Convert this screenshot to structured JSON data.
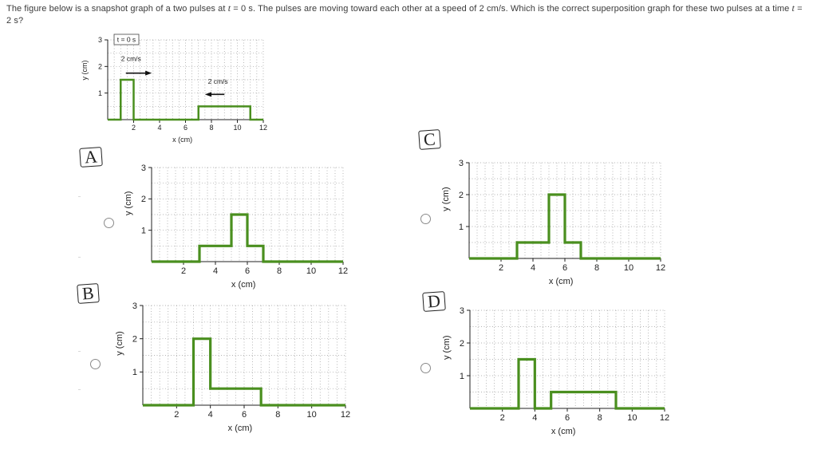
{
  "question": {
    "part1": "The figure below is a snapshot graph of a two pulses at ",
    "t_var1": "t",
    "part2": " = 0 s. The pulses are moving toward each other at a speed of 2 cm/s. Which is the correct superposition graph for these two pulses at a time ",
    "t_var2": "t",
    "part3": " = 2 s?"
  },
  "snapshot": {
    "time_label": "t = 0 s",
    "speed_left": "2 cm/s",
    "speed_right": "2 cm/s",
    "xlabel": "x (cm)",
    "ylabel": "y (cm)",
    "x_ticks": [
      "2",
      "4",
      "6",
      "8",
      "10",
      "12"
    ],
    "y_ticks": [
      "1",
      "2",
      "3"
    ]
  },
  "options": [
    {
      "letter": "A",
      "xlabel": "x (cm)",
      "ylabel": "y (cm)",
      "x_ticks": [
        "2",
        "4",
        "6",
        "8",
        "10",
        "12"
      ],
      "y_ticks": [
        "1",
        "2",
        "3"
      ]
    },
    {
      "letter": "B",
      "xlabel": "x (cm)",
      "ylabel": "y (cm)",
      "x_ticks": [
        "2",
        "4",
        "6",
        "8",
        "10",
        "12"
      ],
      "y_ticks": [
        "1",
        "2",
        "3"
      ]
    },
    {
      "letter": "C",
      "xlabel": "x (cm)",
      "ylabel": "y (cm)",
      "x_ticks": [
        "2",
        "4",
        "6",
        "8",
        "10",
        "12"
      ],
      "y_ticks": [
        "1",
        "2",
        "3"
      ]
    },
    {
      "letter": "D",
      "xlabel": "x (cm)",
      "ylabel": "y (cm)",
      "x_ticks": [
        "2",
        "4",
        "6",
        "8",
        "10",
        "12"
      ],
      "y_ticks": [
        "1",
        "2",
        "3"
      ]
    }
  ],
  "colors": {
    "pulse": "#4a8f1f",
    "grid": "#9a9a9a",
    "text": "#3a3a3a"
  },
  "chart_data": [
    {
      "id": "snapshot",
      "type": "line",
      "title": "t = 0 s",
      "xlabel": "x (cm)",
      "ylabel": "y (cm)",
      "xlim": [
        0,
        12
      ],
      "ylim": [
        0,
        3
      ],
      "grid": true,
      "x": [
        0,
        1,
        1,
        2,
        2,
        7,
        7,
        11,
        11,
        12
      ],
      "y": [
        0,
        0,
        1.5,
        1.5,
        0,
        0,
        0.5,
        0.5,
        0,
        0
      ]
    },
    {
      "id": "A",
      "type": "line",
      "xlabel": "x (cm)",
      "ylabel": "y (cm)",
      "xlim": [
        0,
        12
      ],
      "ylim": [
        0,
        3
      ],
      "grid": true,
      "x": [
        0,
        3,
        3,
        5,
        5,
        6,
        6,
        7,
        7,
        12
      ],
      "y": [
        0,
        0,
        0.5,
        0.5,
        1.5,
        1.5,
        0.5,
        0.5,
        0,
        0
      ]
    },
    {
      "id": "B",
      "type": "line",
      "xlabel": "x (cm)",
      "ylabel": "y (cm)",
      "xlim": [
        0,
        12
      ],
      "ylim": [
        0,
        3
      ],
      "grid": true,
      "x": [
        0,
        3,
        3,
        4,
        4,
        7,
        7,
        12
      ],
      "y": [
        0,
        0,
        2,
        2,
        0.5,
        0.5,
        0,
        0
      ]
    },
    {
      "id": "C",
      "type": "line",
      "xlabel": "x (cm)",
      "ylabel": "y (cm)",
      "xlim": [
        0,
        12
      ],
      "ylim": [
        0,
        3
      ],
      "grid": true,
      "x": [
        0,
        3,
        3,
        5,
        5,
        6,
        6,
        7,
        7,
        12
      ],
      "y": [
        0,
        0,
        0.5,
        0.5,
        2,
        2,
        0.5,
        0.5,
        0,
        0
      ]
    },
    {
      "id": "D",
      "type": "line",
      "xlabel": "x (cm)",
      "ylabel": "y (cm)",
      "xlim": [
        0,
        12
      ],
      "ylim": [
        0,
        3
      ],
      "grid": true,
      "x": [
        0,
        3,
        3,
        4,
        4,
        5,
        5,
        9,
        9,
        12
      ],
      "y": [
        0,
        0,
        1.5,
        1.5,
        0,
        0,
        0.5,
        0.5,
        0,
        0
      ]
    }
  ]
}
